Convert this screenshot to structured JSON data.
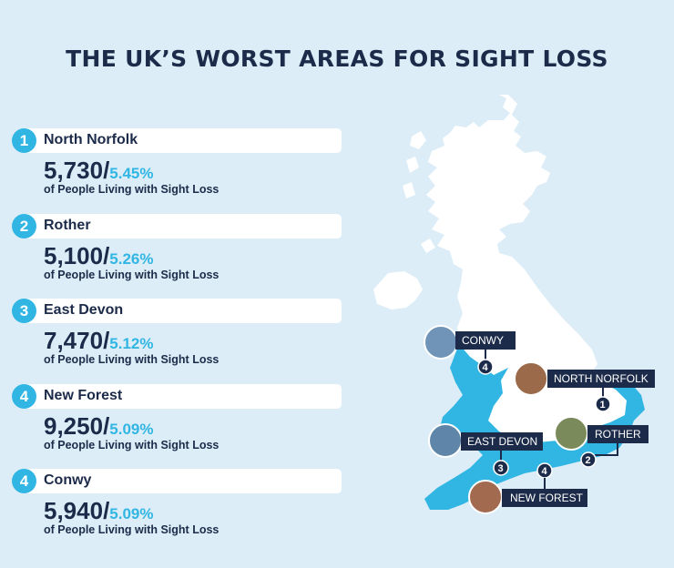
{
  "title": "THE UK’S WORST AREAS FOR SIGHT LOSS",
  "colors": {
    "navy": "#1c2b49",
    "accent": "#31b6e4",
    "background": "#dcedf7",
    "land": "#ffffff",
    "highlight_land": "#31b6e4"
  },
  "entries": [
    {
      "rank": "1",
      "name": "North Norfolk",
      "count": "5,730/",
      "percent": "5.45%",
      "caption": "of People Living with Sight Loss"
    },
    {
      "rank": "2",
      "name": "Rother",
      "count": "5,100/",
      "percent": "5.26%",
      "caption": "of People Living with Sight Loss"
    },
    {
      "rank": "3",
      "name": "East Devon",
      "count": "7,470/",
      "percent": "5.12%",
      "caption": "of People Living with Sight Loss"
    },
    {
      "rank": "4",
      "name": "New Forest",
      "count": "9,250/",
      "percent": "5.09%",
      "caption": "of People Living with Sight Loss"
    },
    {
      "rank": "4",
      "name": "Conwy",
      "count": "5,940/",
      "percent": "5.09%",
      "caption": "of People Living with Sight Loss"
    }
  ],
  "map": {
    "markers": [
      {
        "label": "CONWY",
        "rank": "4"
      },
      {
        "label": "NORTH NORFOLK",
        "rank": "1"
      },
      {
        "label": "ROTHER",
        "rank": "2"
      },
      {
        "label": "EAST DEVON",
        "rank": "3"
      },
      {
        "label": "NEW FOREST",
        "rank": "4"
      }
    ]
  }
}
